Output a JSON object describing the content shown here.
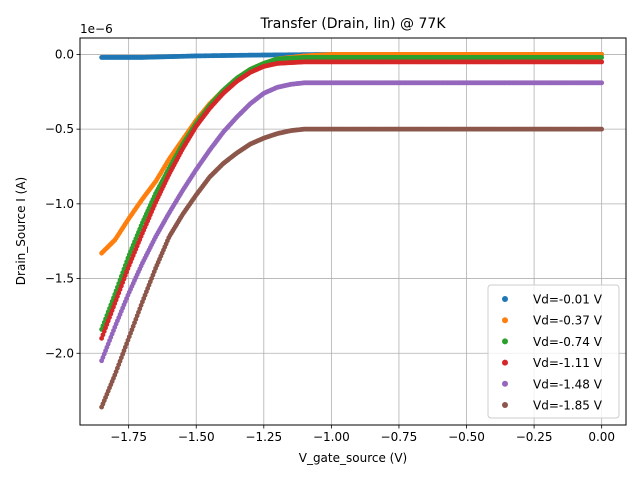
{
  "chart_data": {
    "type": "scatter",
    "title": "Transfer (Drain, lin) @ 77K",
    "xlabel": "V_gate_source (V)",
    "ylabel": "Drain_Source I (A)",
    "y_scale_label": "1e−6",
    "xlim": [
      -1.93,
      0.09
    ],
    "ylim": [
      -2.48,
      0.11
    ],
    "x_ticks": [
      -1.75,
      -1.5,
      -1.25,
      -1.0,
      -0.75,
      -0.5,
      -0.25,
      0.0
    ],
    "x_tick_labels": [
      "−1.75",
      "−1.50",
      "−1.25",
      "−1.00",
      "−0.75",
      "−0.50",
      "−0.25",
      "0.00"
    ],
    "y_ticks": [
      0.0,
      -0.5,
      -1.0,
      -1.5,
      -2.0
    ],
    "y_tick_labels": [
      "0.0",
      "−0.5",
      "−1.0",
      "−1.5",
      "−2.0"
    ],
    "grid": true,
    "legend_position": "lower-right",
    "x_range": [
      -1.85,
      0.0
    ],
    "series": [
      {
        "name": "Vd=-0.01 V",
        "color": "#1f77b4",
        "points": [
          [
            -1.85,
            -0.02
          ],
          [
            -1.7,
            -0.02
          ],
          [
            -1.5,
            -0.01
          ],
          [
            -1.3,
            -0.005
          ],
          [
            -1.0,
            0.0
          ],
          [
            0.0,
            0.0
          ]
        ]
      },
      {
        "name": "Vd=-0.37 V",
        "color": "#ff7f0e",
        "points": [
          [
            -1.85,
            -1.33
          ],
          [
            -1.8,
            -1.24
          ],
          [
            -1.75,
            -1.1
          ],
          [
            -1.7,
            -0.97
          ],
          [
            -1.65,
            -0.85
          ],
          [
            -1.6,
            -0.7
          ],
          [
            -1.55,
            -0.57
          ],
          [
            -1.5,
            -0.44
          ],
          [
            -1.45,
            -0.33
          ],
          [
            -1.4,
            -0.24
          ],
          [
            -1.35,
            -0.16
          ],
          [
            -1.3,
            -0.1
          ],
          [
            -1.25,
            -0.06
          ],
          [
            -1.2,
            -0.03
          ],
          [
            -1.1,
            -0.01
          ],
          [
            -1.0,
            0.0
          ],
          [
            0.0,
            0.0
          ]
        ]
      },
      {
        "name": "Vd=-0.74 V",
        "color": "#2ca02c",
        "points": [
          [
            -1.85,
            -1.84
          ],
          [
            -1.8,
            -1.6
          ],
          [
            -1.75,
            -1.35
          ],
          [
            -1.7,
            -1.13
          ],
          [
            -1.65,
            -0.93
          ],
          [
            -1.6,
            -0.76
          ],
          [
            -1.55,
            -0.6
          ],
          [
            -1.5,
            -0.46
          ],
          [
            -1.45,
            -0.34
          ],
          [
            -1.4,
            -0.24
          ],
          [
            -1.35,
            -0.16
          ],
          [
            -1.3,
            -0.1
          ],
          [
            -1.25,
            -0.06
          ],
          [
            -1.2,
            -0.03
          ],
          [
            -1.1,
            -0.02
          ],
          [
            -1.0,
            -0.02
          ],
          [
            0.0,
            -0.02
          ]
        ]
      },
      {
        "name": "Vd=-1.11 V",
        "color": "#d62728",
        "points": [
          [
            -1.85,
            -1.9
          ],
          [
            -1.8,
            -1.66
          ],
          [
            -1.75,
            -1.42
          ],
          [
            -1.7,
            -1.2
          ],
          [
            -1.65,
            -0.99
          ],
          [
            -1.6,
            -0.8
          ],
          [
            -1.55,
            -0.63
          ],
          [
            -1.5,
            -0.48
          ],
          [
            -1.45,
            -0.36
          ],
          [
            -1.4,
            -0.26
          ],
          [
            -1.35,
            -0.18
          ],
          [
            -1.3,
            -0.12
          ],
          [
            -1.25,
            -0.08
          ],
          [
            -1.2,
            -0.06
          ],
          [
            -1.1,
            -0.05
          ],
          [
            -1.0,
            -0.05
          ],
          [
            0.0,
            -0.05
          ]
        ]
      },
      {
        "name": "Vd=-1.48 V",
        "color": "#9467bd",
        "points": [
          [
            -1.85,
            -2.05
          ],
          [
            -1.8,
            -1.82
          ],
          [
            -1.75,
            -1.6
          ],
          [
            -1.7,
            -1.4
          ],
          [
            -1.65,
            -1.22
          ],
          [
            -1.6,
            -1.06
          ],
          [
            -1.55,
            -0.91
          ],
          [
            -1.5,
            -0.77
          ],
          [
            -1.45,
            -0.64
          ],
          [
            -1.4,
            -0.52
          ],
          [
            -1.35,
            -0.42
          ],
          [
            -1.3,
            -0.33
          ],
          [
            -1.25,
            -0.26
          ],
          [
            -1.2,
            -0.22
          ],
          [
            -1.15,
            -0.2
          ],
          [
            -1.1,
            -0.19
          ],
          [
            -1.0,
            -0.19
          ],
          [
            0.0,
            -0.19
          ]
        ]
      },
      {
        "name": "Vd=-1.85 V",
        "color": "#8c564b",
        "points": [
          [
            -1.85,
            -2.36
          ],
          [
            -1.8,
            -2.14
          ],
          [
            -1.75,
            -1.9
          ],
          [
            -1.7,
            -1.66
          ],
          [
            -1.65,
            -1.43
          ],
          [
            -1.6,
            -1.22
          ],
          [
            -1.55,
            -1.07
          ],
          [
            -1.5,
            -0.94
          ],
          [
            -1.45,
            -0.82
          ],
          [
            -1.4,
            -0.73
          ],
          [
            -1.35,
            -0.66
          ],
          [
            -1.3,
            -0.6
          ],
          [
            -1.25,
            -0.56
          ],
          [
            -1.2,
            -0.53
          ],
          [
            -1.15,
            -0.51
          ],
          [
            -1.1,
            -0.5
          ],
          [
            -1.0,
            -0.5
          ],
          [
            0.0,
            -0.5
          ]
        ]
      }
    ]
  }
}
